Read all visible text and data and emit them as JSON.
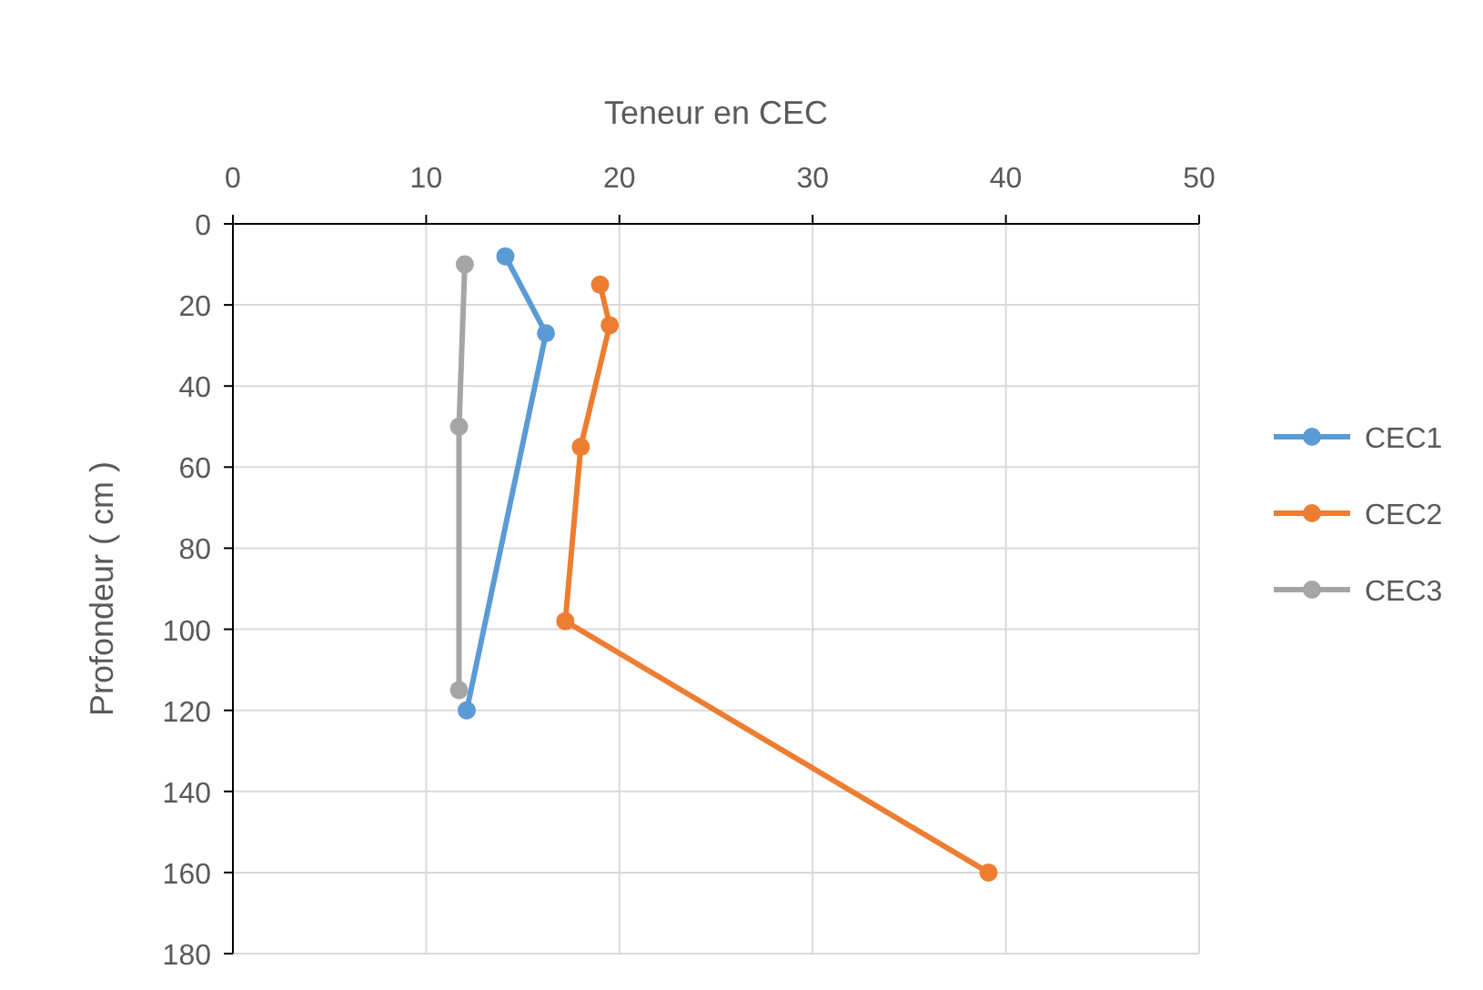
{
  "chart_data": {
    "type": "line",
    "xlabel": "Teneur en CEC",
    "ylabel": "Profondeur  ( cm )",
    "xlim": [
      0,
      50
    ],
    "xticks": [
      0,
      10,
      20,
      30,
      40,
      50
    ],
    "ylim": [
      180,
      0
    ],
    "yticks": [
      0,
      20,
      40,
      60,
      80,
      100,
      120,
      140,
      160,
      180
    ],
    "grid": true,
    "legend": "right",
    "marker": "circle",
    "line_style": "solid",
    "series": [
      {
        "name": "CEC1",
        "color": "#5b9bd5",
        "x": [
          14.1,
          16.2,
          12.1
        ],
        "values": [
          8,
          27,
          120
        ]
      },
      {
        "name": "CEC2",
        "color": "#ed7d31",
        "x": [
          19,
          19.5,
          18,
          17.2,
          39.1
        ],
        "values": [
          15,
          25,
          55,
          98,
          160
        ]
      },
      {
        "name": "CEC3",
        "color": "#a5a5a5",
        "x": [
          12,
          11.7,
          11.7
        ],
        "values": [
          10,
          50,
          115
        ]
      }
    ]
  }
}
